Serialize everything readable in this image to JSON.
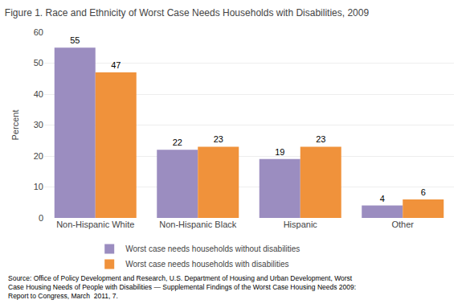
{
  "chart_data": {
    "type": "bar",
    "title": "Figure 1. Race and Ethnicity of Worst Case Needs Households with Disabilities, 2009",
    "categories": [
      "Non-Hispanic White",
      "Non-Hispanic Black",
      "Hispanic",
      "Other"
    ],
    "series": [
      {
        "name": "Worst case needs households without disabilities",
        "color": "#9b8dc0",
        "values": [
          55,
          22,
          19,
          4
        ]
      },
      {
        "name": "Worst case needs households with disabilities",
        "color": "#f0923b",
        "values": [
          47,
          23,
          23,
          6
        ]
      }
    ],
    "ylabel": "Percent",
    "ylim": [
      0,
      60
    ],
    "yticks": [
      0,
      10,
      20,
      30,
      40,
      50,
      60
    ],
    "grid": true,
    "data_labels": true,
    "legend": "bottom",
    "annotations": [
      "Source: Office of Policy Development and Research, U.S. Department of Housing and Urban Development, Worst\nCase Housing Needs of People with Disabilities — Supplemental Findings of the Worst Case Housing Needs 2009:\nReport to Congress, March  2011, 7."
    ]
  }
}
